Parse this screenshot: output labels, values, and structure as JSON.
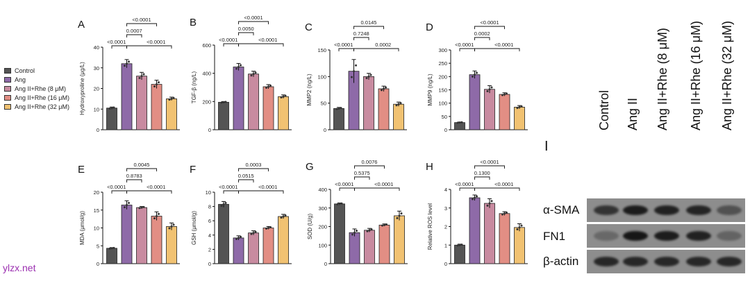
{
  "colors": [
    "#545454",
    "#8e6aa8",
    "#c88ba0",
    "#e28e84",
    "#f1c272"
  ],
  "legend": [
    "Control",
    "Ang",
    "Ang II+Rhe (8 μM)",
    "Ang II+Rhe (16 μM)",
    "Ang II+Rhe (32 μM)"
  ],
  "watermark": "ylzx.net",
  "chart_data": [
    {
      "type": "bar",
      "letter": "A",
      "ylabel": "Hydroxyproline (μg/L)",
      "ylim": [
        0,
        40
      ],
      "yticks": [
        0,
        10,
        20,
        30,
        40
      ],
      "yticklabels": [
        "0",
        "10",
        "20",
        "30",
        "40"
      ],
      "values": [
        10.5,
        32,
        26,
        22,
        15
      ],
      "errors": [
        0.5,
        2,
        1.8,
        2,
        0.8
      ],
      "comparisons": [
        {
          "a": 0,
          "b": 1,
          "label": "<0.0001",
          "level": 0
        },
        {
          "a": 1,
          "b": 4,
          "label": "<0.0001",
          "level": 0
        },
        {
          "a": 1,
          "b": 2,
          "label": "0.0007",
          "level": 1
        },
        {
          "a": 1,
          "b": 3,
          "label": "<0.0001",
          "level": 2
        }
      ]
    },
    {
      "type": "bar",
      "letter": "B",
      "ylabel": "TGF-β (ng/L)",
      "ylim": [
        0,
        600
      ],
      "yticks": [
        0,
        200,
        400,
        600
      ],
      "yticklabels": [
        "0",
        "200",
        "400",
        "600"
      ],
      "values": [
        195,
        445,
        395,
        305,
        235
      ],
      "errors": [
        5,
        25,
        20,
        15,
        12
      ],
      "comparisons": [
        {
          "a": 0,
          "b": 1,
          "label": "<0.0001",
          "level": 0
        },
        {
          "a": 1,
          "b": 4,
          "label": "<0.0001",
          "level": 0
        },
        {
          "a": 1,
          "b": 2,
          "label": "0.0050",
          "level": 1
        },
        {
          "a": 1,
          "b": 3,
          "label": "<0.0001",
          "level": 2
        }
      ]
    },
    {
      "type": "bar",
      "letter": "C",
      "ylabel": "MMP2 (ng/L)",
      "ylim": [
        0,
        150
      ],
      "yticks": [
        0,
        50,
        100,
        150
      ],
      "yticklabels": [
        "0",
        "50",
        "100",
        "150"
      ],
      "values": [
        40,
        110,
        100,
        77,
        48
      ],
      "errors": [
        2,
        22,
        6,
        5,
        4
      ],
      "comparisons": [
        {
          "a": 0,
          "b": 1,
          "label": "<0.0001",
          "level": 0
        },
        {
          "a": 1,
          "b": 4,
          "label": "0.0002",
          "level": 0
        },
        {
          "a": 1,
          "b": 2,
          "label": "0.7248",
          "level": 1
        },
        {
          "a": 1,
          "b": 3,
          "label": "0.0145",
          "level": 2
        }
      ]
    },
    {
      "type": "bar",
      "letter": "D",
      "ylabel": "MMP9 (ng/L)",
      "ylim": [
        0,
        300
      ],
      "yticks": [
        0,
        50,
        100,
        150,
        200,
        250,
        300
      ],
      "yticklabels": [
        "0",
        "50",
        "100",
        "150",
        "200",
        "250",
        "300"
      ],
      "values": [
        27,
        207,
        152,
        133,
        85
      ],
      "errors": [
        2,
        14,
        14,
        6,
        6
      ],
      "comparisons": [
        {
          "a": 0,
          "b": 1,
          "label": "<0.0001",
          "level": 0
        },
        {
          "a": 1,
          "b": 4,
          "label": "<0.0001",
          "level": 0
        },
        {
          "a": 1,
          "b": 2,
          "label": "0.0002",
          "level": 1
        },
        {
          "a": 1,
          "b": 3,
          "label": "<0.0001",
          "level": 2
        }
      ]
    },
    {
      "type": "bar",
      "letter": "E",
      "ylabel": "MDA (μmol/g)",
      "ylim": [
        0,
        20
      ],
      "yticks": [
        0,
        5,
        10,
        15,
        20
      ],
      "yticklabels": [
        "0",
        "5",
        "10",
        "15",
        "20"
      ],
      "values": [
        4.3,
        16.4,
        15.7,
        13.3,
        10.4
      ],
      "errors": [
        0.2,
        1.2,
        0.3,
        1.2,
        1
      ],
      "comparisons": [
        {
          "a": 0,
          "b": 1,
          "label": "<0.0001",
          "level": 0
        },
        {
          "a": 1,
          "b": 4,
          "label": "<0.0001",
          "level": 0
        },
        {
          "a": 1,
          "b": 2,
          "label": "0.8783",
          "level": 1
        },
        {
          "a": 1,
          "b": 3,
          "label": "0.0045",
          "level": 2
        }
      ]
    },
    {
      "type": "bar",
      "letter": "F",
      "ylabel": "GSH (μmol/g)",
      "ylim": [
        0,
        10
      ],
      "yticks": [
        0,
        2,
        4,
        6,
        8,
        10
      ],
      "yticklabels": [
        "0",
        "2",
        "4",
        "6",
        "8",
        "10"
      ],
      "values": [
        8.3,
        3.6,
        4.3,
        5.0,
        6.6
      ],
      "errors": [
        0.4,
        0.3,
        0.3,
        0.2,
        0.3
      ],
      "comparisons": [
        {
          "a": 0,
          "b": 1,
          "label": "<0.0001",
          "level": 0
        },
        {
          "a": 1,
          "b": 4,
          "label": "<0.0001",
          "level": 0
        },
        {
          "a": 1,
          "b": 2,
          "label": "0.0515",
          "level": 1
        },
        {
          "a": 1,
          "b": 3,
          "label": "0.0003",
          "level": 2
        }
      ]
    },
    {
      "type": "bar",
      "letter": "G",
      "ylabel": "SOD (U/g)",
      "ylim": [
        0,
        400
      ],
      "yticks": [
        0,
        100,
        200,
        300,
        400
      ],
      "yticklabels": [
        "0",
        "100",
        "200",
        "300",
        "400"
      ],
      "values": [
        322,
        167,
        180,
        208,
        258
      ],
      "errors": [
        5,
        20,
        10,
        6,
        25
      ],
      "comparisons": [
        {
          "a": 0,
          "b": 1,
          "label": "<0.0001",
          "level": 0
        },
        {
          "a": 1,
          "b": 4,
          "label": "<0.0001",
          "level": 0
        },
        {
          "a": 1,
          "b": 2,
          "label": "0.5375",
          "level": 1
        },
        {
          "a": 1,
          "b": 3,
          "label": "0.0076",
          "level": 2
        }
      ]
    },
    {
      "type": "bar",
      "letter": "H",
      "ylabel": "Relative ROS level",
      "ylim": [
        0,
        4
      ],
      "yticks": [
        0,
        1,
        2,
        3,
        4
      ],
      "yticklabels": [
        "0",
        "1",
        "2",
        "3",
        "4"
      ],
      "values": [
        1.0,
        3.55,
        3.25,
        2.7,
        1.95
      ],
      "errors": [
        0.05,
        0.15,
        0.25,
        0.1,
        0.2
      ],
      "comparisons": [
        {
          "a": 0,
          "b": 1,
          "label": "<0.0001",
          "level": 0
        },
        {
          "a": 1,
          "b": 4,
          "label": "<0.0001",
          "level": 0
        },
        {
          "a": 1,
          "b": 2,
          "label": "0.1300",
          "level": 1
        },
        {
          "a": 1,
          "b": 3,
          "label": "<0.0001",
          "level": 2
        }
      ]
    }
  ],
  "blot": {
    "title": "I",
    "columns": [
      "Control",
      "Ang II",
      "Ang II+Rhe (8 μM)",
      "Ang II+Rhe (16 μM)",
      "Ang II+Rhe (32 μM)"
    ],
    "rows": [
      {
        "label": "α-SMA",
        "intensity": [
          0.75,
          0.95,
          0.9,
          0.88,
          0.5
        ]
      },
      {
        "label": "FN1",
        "intensity": [
          0.3,
          1.0,
          0.95,
          0.9,
          0.35
        ]
      },
      {
        "label": "β-actin",
        "intensity": [
          0.85,
          0.85,
          0.85,
          0.85,
          0.85
        ]
      }
    ]
  }
}
